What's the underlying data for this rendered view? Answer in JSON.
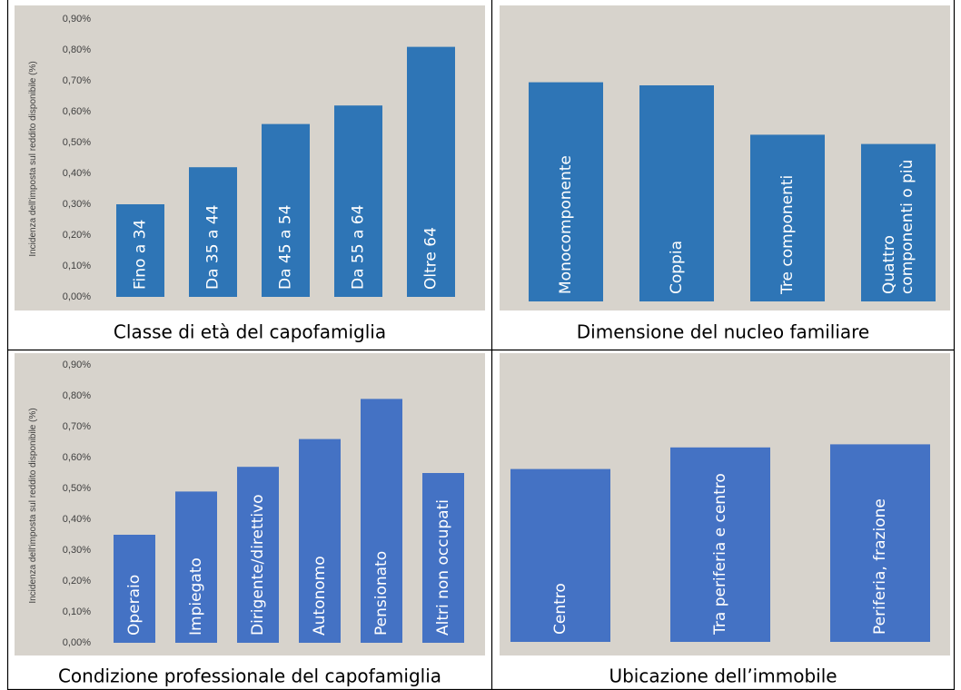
{
  "chart_data": [
    {
      "type": "bar",
      "xlabel": "Classe di età del capofamiglia",
      "ylabel": "Incidenza dell'imposta sul reddito disponibile (%)",
      "categories": [
        "Fino a 34",
        "Da 35 a 44",
        "Da 45 a 54",
        "Da 55 a 64",
        "Oltre 64"
      ],
      "values": [
        0.3,
        0.42,
        0.56,
        0.62,
        0.81
      ],
      "color": "#2e75b6",
      "ylim": [
        0,
        0.9
      ],
      "yticks": [
        {
          "value": 0,
          "label": "0,00%"
        },
        {
          "value": 0.1,
          "label": "0,10%"
        },
        {
          "value": 0.2,
          "label": "0,20%"
        },
        {
          "value": 0.3,
          "label": "0,30%"
        },
        {
          "value": 0.4,
          "label": "0,40%"
        },
        {
          "value": 0.5,
          "label": "0,50%"
        },
        {
          "value": 0.6,
          "label": "0,60%"
        },
        {
          "value": 0.7,
          "label": "0,70%"
        },
        {
          "value": 0.8,
          "label": "0,80%"
        },
        {
          "value": 0.9,
          "label": "0,90%"
        }
      ]
    },
    {
      "type": "bar",
      "xlabel": "Dimensione del nucleo familiare",
      "categories": [
        "Monocomponente",
        "Coppia",
        "Tre componenti",
        "Quattro componenti o più"
      ],
      "values": [
        0.71,
        0.7,
        0.54,
        0.51
      ],
      "color": "#2e75b6",
      "ylim": [
        0,
        0.9
      ]
    },
    {
      "type": "bar",
      "xlabel": "Condizione professionale del capofamiglia",
      "ylabel": "Incidenza dell'imposta sul reddito disponibile (%)",
      "categories": [
        "Operaio",
        "Impiegato",
        "Dirigente/direttivo",
        "Autonomo",
        "Pensionato",
        "Altri non occupati"
      ],
      "values": [
        0.35,
        0.49,
        0.57,
        0.66,
        0.79,
        0.55
      ],
      "color": "#4472c4",
      "ylim": [
        0,
        0.9
      ],
      "yticks": [
        {
          "value": 0,
          "label": "0,00%"
        },
        {
          "value": 0.1,
          "label": "0,10%"
        },
        {
          "value": 0.2,
          "label": "0,20%"
        },
        {
          "value": 0.3,
          "label": "0,30%"
        },
        {
          "value": 0.4,
          "label": "0,40%"
        },
        {
          "value": 0.5,
          "label": "0,50%"
        },
        {
          "value": 0.6,
          "label": "0,60%"
        },
        {
          "value": 0.7,
          "label": "0,70%"
        },
        {
          "value": 0.8,
          "label": "0,80%"
        },
        {
          "value": 0.9,
          "label": "0,90%"
        }
      ]
    },
    {
      "type": "bar",
      "xlabel": "Ubicazione dell’immobile",
      "categories": [
        "Centro",
        "Tra periferia e centro",
        "Periferia, frazione"
      ],
      "values": [
        0.56,
        0.63,
        0.64
      ],
      "color": "#4472c4",
      "ylim": [
        0,
        0.9
      ]
    }
  ]
}
